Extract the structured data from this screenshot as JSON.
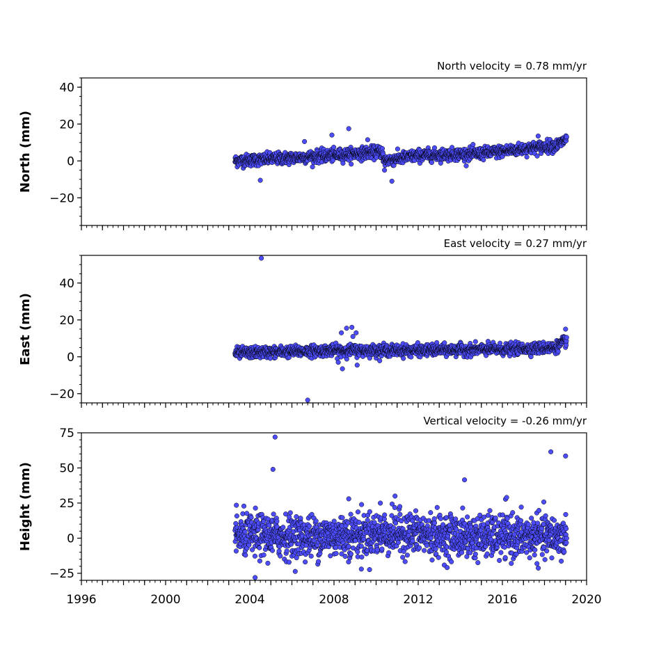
{
  "colors": {
    "marker_fill": "#4d4dff",
    "marker_edge": "#000000",
    "axes": "#000000",
    "background": "#ffffff"
  },
  "chart_data": [
    {
      "type": "scatter",
      "title": "North velocity = 0.78 mm/yr",
      "xlabel": "",
      "ylabel": "North (mm)",
      "xlim": [
        1996,
        2020
      ],
      "ylim": [
        -35,
        45
      ],
      "yticks": [
        -20,
        0,
        20,
        40
      ],
      "yminor_step": 5,
      "grid": false,
      "series_summary": {
        "x_start": 2003.3,
        "x_end": 2019.05,
        "trend": [
          [
            2003.3,
            0
          ],
          [
            2008,
            3
          ],
          [
            2010.3,
            5
          ],
          [
            2010.35,
            0
          ],
          [
            2012,
            3
          ],
          [
            2015,
            4
          ],
          [
            2018.6,
            8.5
          ],
          [
            2019.05,
            12
          ]
        ],
        "scatter_sd": 1.6
      },
      "outliers": [
        [
          2004.5,
          -10.5
        ],
        [
          2006.6,
          10.5
        ],
        [
          2007.9,
          14
        ],
        [
          2008.7,
          17.5
        ],
        [
          2009.6,
          11.5
        ],
        [
          2010.4,
          -5
        ],
        [
          2010.75,
          -11
        ],
        [
          2017.7,
          13.5
        ]
      ]
    },
    {
      "type": "scatter",
      "title": "East velocity = 0.27 mm/yr",
      "xlabel": "",
      "ylabel": "East (mm)",
      "xlim": [
        1996,
        2020
      ],
      "ylim": [
        -25,
        55
      ],
      "yticks": [
        -20,
        0,
        20,
        40
      ],
      "yminor_step": 5,
      "grid": false,
      "series_summary": {
        "x_start": 2003.3,
        "x_end": 2019.05,
        "trend": [
          [
            2003.3,
            2
          ],
          [
            2008,
            3.5
          ],
          [
            2012,
            3.5
          ],
          [
            2016,
            4
          ],
          [
            2018.5,
            5
          ],
          [
            2019.05,
            9
          ]
        ],
        "scatter_sd": 1.5
      },
      "outliers": [
        [
          2004.55,
          53.5
        ],
        [
          2006.75,
          -23.5
        ],
        [
          2008.4,
          -6.5
        ],
        [
          2008.35,
          13
        ],
        [
          2008.6,
          15.5
        ],
        [
          2008.85,
          16
        ],
        [
          2009.05,
          13
        ],
        [
          2008.9,
          11
        ],
        [
          2009.1,
          -4.5
        ],
        [
          2008.2,
          -3
        ],
        [
          2019.0,
          15
        ]
      ]
    },
    {
      "type": "scatter",
      "title": "Vertical velocity = -0.26 mm/yr",
      "xlabel": "",
      "ylabel": "Height (mm)",
      "xlim": [
        1996,
        2020
      ],
      "ylim": [
        -30,
        75
      ],
      "yticks": [
        -25,
        0,
        25,
        50,
        75
      ],
      "yminor_step": 5,
      "grid": false,
      "series_summary": {
        "x_start": 2003.3,
        "x_end": 2019.05,
        "trend": [
          [
            2003.3,
            2
          ],
          [
            2007,
            1
          ],
          [
            2011,
            4
          ],
          [
            2014,
            1
          ],
          [
            2017,
            1
          ],
          [
            2019.05,
            1
          ]
        ],
        "scatter_sd": 7.5
      },
      "outliers": [
        [
          2005.2,
          72
        ],
        [
          2005.1,
          49
        ],
        [
          2004.25,
          -28
        ],
        [
          2014.2,
          41.5
        ],
        [
          2018.3,
          61.5
        ],
        [
          2019.0,
          58.5
        ],
        [
          2016.2,
          29
        ],
        [
          2010.9,
          30
        ],
        [
          2008.7,
          28
        ],
        [
          2010.2,
          25
        ],
        [
          2009.3,
          -22
        ]
      ]
    }
  ],
  "xaxis": {
    "ticks": [
      1996,
      2000,
      2004,
      2008,
      2012,
      2016,
      2020
    ],
    "tick_labels": [
      "1996",
      "2000",
      "2004",
      "2008",
      "2012",
      "2016",
      "2020"
    ],
    "minor_step_years": 0.25
  }
}
